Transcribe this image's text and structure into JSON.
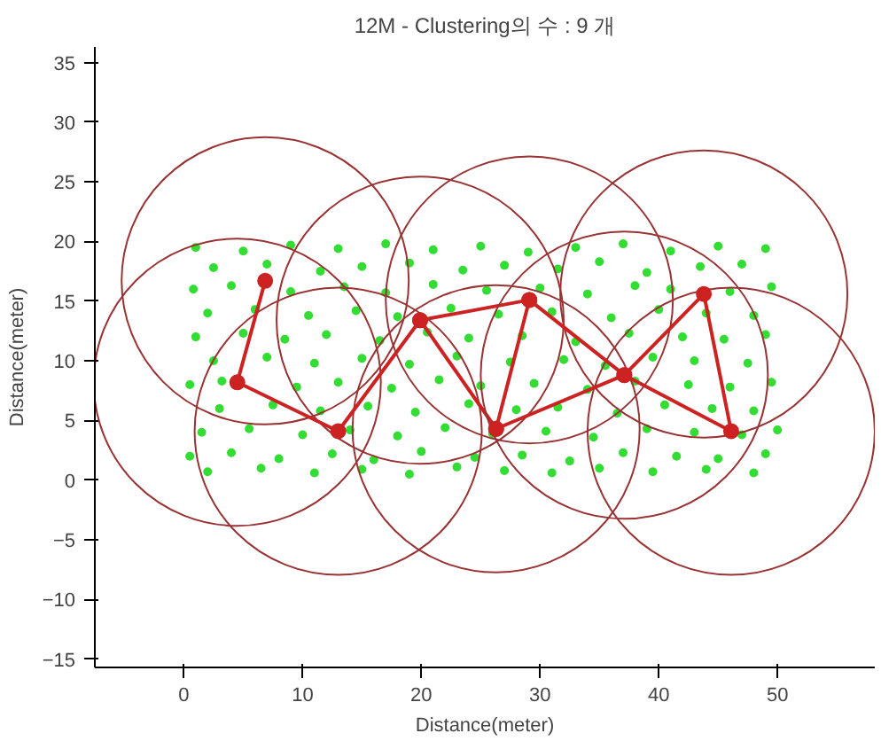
{
  "chart_data": {
    "type": "scatter",
    "title": "12M - Clustering의 수 : 9 개",
    "xlabel": "Distance(meter)",
    "ylabel": "Distance(meter)",
    "xlim": [
      -7.5,
      58.2
    ],
    "ylim": [
      -15.7,
      36.3
    ],
    "xticks": [
      0,
      10,
      20,
      30,
      40,
      50
    ],
    "yticks": [
      -15,
      -10,
      -5,
      0,
      5,
      10,
      15,
      20,
      25,
      30,
      35
    ],
    "grid": false,
    "series": [
      {
        "color": "#33dd33",
        "marker": "circle",
        "x": [
          1,
          5,
          9,
          13,
          17,
          21,
          25,
          29,
          33,
          37,
          41,
          45,
          49,
          2.5,
          7,
          11.5,
          15,
          19,
          23.5,
          27,
          31.5,
          35,
          39,
          43.5,
          47,
          0.8,
          4,
          9,
          13.5,
          17,
          21,
          25.5,
          30,
          34,
          38,
          41,
          46,
          49.5,
          2,
          6,
          10.5,
          14.5,
          18,
          22.5,
          26.5,
          31,
          36,
          40,
          44,
          48,
          1,
          5,
          8.5,
          12,
          16.5,
          20.5,
          24,
          28.5,
          33,
          37.5,
          42,
          45.5,
          49,
          2.5,
          7,
          11,
          15,
          19,
          23,
          27.5,
          32,
          35.5,
          39.5,
          43,
          47.5,
          0.5,
          3.2,
          9.5,
          13,
          17.5,
          21.5,
          25,
          29.5,
          34,
          38,
          42.5,
          46,
          49.5,
          3,
          7.5,
          11.5,
          15.5,
          19.5,
          24,
          28,
          31.5,
          36.5,
          40.5,
          44.5,
          48,
          1.5,
          5.5,
          10,
          14,
          18,
          22,
          26,
          30.5,
          34.5,
          39,
          43,
          47,
          50,
          0.5,
          4,
          8,
          12.5,
          16,
          20,
          24.5,
          28.5,
          32.5,
          37,
          41.5,
          45,
          49,
          2,
          6.5,
          11,
          15,
          19,
          23,
          27,
          31,
          35,
          39.5,
          44,
          48
        ],
        "values": [
          19.5,
          19.2,
          19.7,
          19.4,
          19.8,
          19.3,
          19.6,
          19.1,
          19.5,
          19.8,
          19.2,
          19.6,
          19.4,
          17.8,
          18.1,
          17.5,
          17.9,
          18.2,
          17.6,
          18,
          17.7,
          18.3,
          17.4,
          17.9,
          18.1,
          16,
          16.3,
          15.8,
          16.2,
          15.7,
          16.4,
          15.9,
          16.1,
          15.6,
          16.3,
          16,
          15.8,
          16.2,
          14,
          14.3,
          13.8,
          14.2,
          13.7,
          14.4,
          13.9,
          14.1,
          13.6,
          14.3,
          14,
          13.8,
          12,
          12.3,
          11.8,
          12.2,
          11.7,
          12.4,
          11.9,
          12.1,
          11.6,
          12.3,
          12,
          11.8,
          12.2,
          10,
          10.3,
          9.8,
          10.2,
          9.7,
          10.4,
          9.9,
          10.1,
          9.6,
          10.3,
          10,
          9.8,
          8,
          8.3,
          7.8,
          8.2,
          7.7,
          8.4,
          7.9,
          8.1,
          7.6,
          8.3,
          8,
          7.8,
          8.2,
          6,
          6.3,
          5.8,
          6.2,
          5.7,
          6.4,
          5.9,
          6.1,
          5.6,
          6.3,
          6,
          5.8,
          4,
          4.3,
          3.8,
          4.2,
          3.7,
          4.4,
          3.9,
          4.1,
          3.6,
          4.3,
          4,
          3.8,
          4.2,
          2,
          2.3,
          1.8,
          2.2,
          1.7,
          2.4,
          1.9,
          2.1,
          1.6,
          2.3,
          2,
          1.8,
          2.2,
          0.7,
          1,
          0.6,
          0.9,
          0.5,
          1.1,
          0.8,
          0.6,
          1,
          0.7,
          0.9,
          0.6
        ]
      },
      {
        "type": "line",
        "color": "#cc2222",
        "line_style": "solid",
        "marker": "circle",
        "x": [
          6.85,
          4.5,
          13.0,
          19.9,
          26.3,
          29.1,
          19.9
        ],
        "values": [
          16.7,
          8.2,
          4.1,
          13.4,
          4.3,
          15.1,
          13.4
        ]
      },
      {
        "type": "line",
        "color": "#cc2222",
        "line_style": "solid",
        "marker": "circle",
        "x": [
          29.1,
          37.1,
          43.8,
          46.1,
          37.1,
          26.3
        ],
        "values": [
          15.1,
          8.8,
          15.6,
          4.1,
          8.8,
          4.3
        ]
      }
    ]
  }
}
